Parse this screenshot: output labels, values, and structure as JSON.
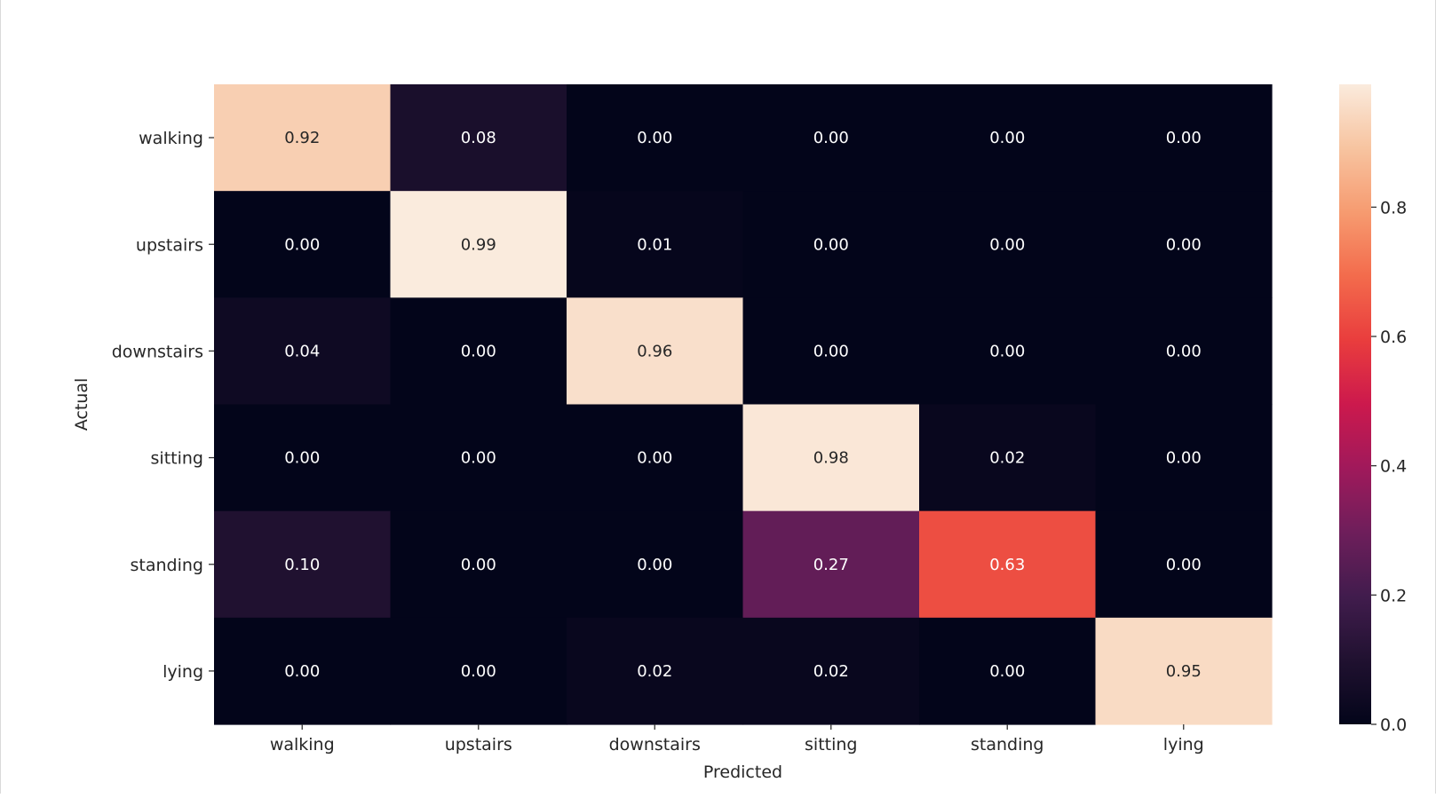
{
  "chart_data": {
    "type": "heatmap",
    "title": "",
    "xlabel": "Predicted",
    "ylabel": "Actual",
    "x_categories": [
      "walking",
      "upstairs",
      "downstairs",
      "sitting",
      "standing",
      "lying"
    ],
    "y_categories": [
      "walking",
      "upstairs",
      "downstairs",
      "sitting",
      "standing",
      "lying"
    ],
    "values": [
      [
        0.92,
        0.08,
        0.0,
        0.0,
        0.0,
        0.0
      ],
      [
        0.0,
        0.99,
        0.01,
        0.0,
        0.0,
        0.0
      ],
      [
        0.04,
        0.0,
        0.96,
        0.0,
        0.0,
        0.0
      ],
      [
        0.0,
        0.0,
        0.0,
        0.98,
        0.02,
        0.0
      ],
      [
        0.1,
        0.0,
        0.0,
        0.27,
        0.63,
        0.0
      ],
      [
        0.0,
        0.0,
        0.02,
        0.02,
        0.0,
        0.95
      ]
    ],
    "value_format": "0.00",
    "colormap": "rocket",
    "colorbar": {
      "vmin": 0.0,
      "vmax": 0.99,
      "ticks": [
        0.0,
        0.2,
        0.4,
        0.6,
        0.8
      ],
      "tick_labels": [
        "0.0",
        "0.2",
        "0.4",
        "0.6",
        "0.8"
      ]
    },
    "annotation_colors": {
      "on_dark": "#ffffff",
      "on_light": "#262626"
    },
    "grid": false,
    "legend": "colorbar-right"
  }
}
